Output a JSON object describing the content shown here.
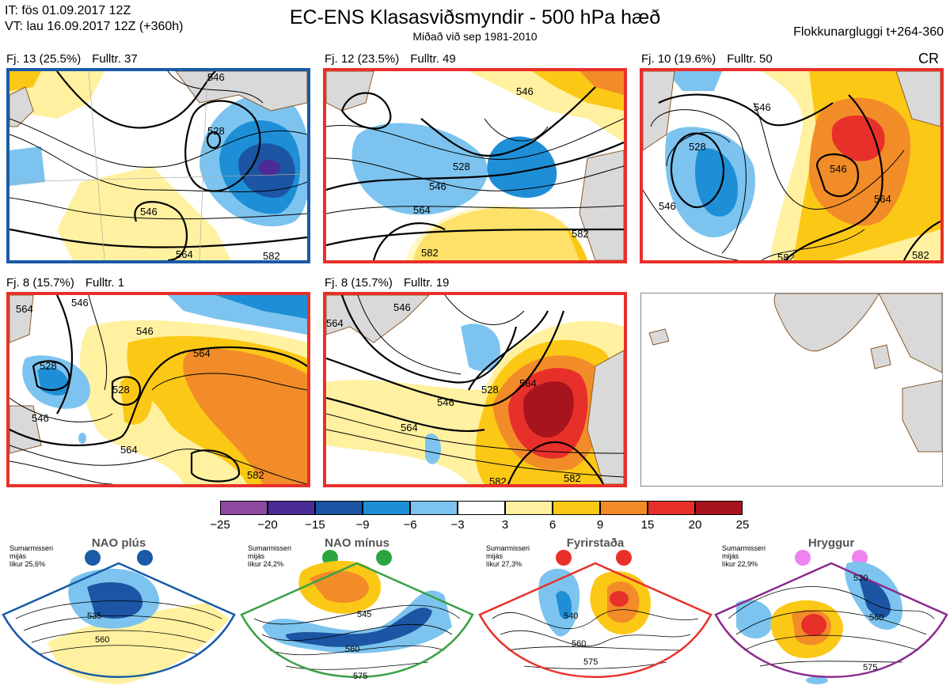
{
  "header": {
    "init_time": "IT: fös 01.09.2017 12Z",
    "valid_time": "VT: lau 16.09.2017 12Z  (+360h)",
    "title": "EC-ENS Klasasviðsmyndir - 500 hPa hæð",
    "subtitle": "Miðað við sep 1981-2010",
    "window": "Flokkunargluggi t+264-360",
    "cr": "CR"
  },
  "colors": {
    "blue_border": "#1a5aa6",
    "red_border": "#e8302a",
    "green_border": "#3ba046",
    "purple_border": "#8a2b8e",
    "land": "#d9d9d9",
    "coast": "#8a5a2b"
  },
  "panels": [
    {
      "label": "Fj. 13 (25.5%)",
      "member": "Fulltr. 37",
      "border": "blue",
      "contours": [
        "546",
        "528",
        "546",
        "564",
        "582"
      ]
    },
    {
      "label": "Fj. 12 (23.5%)",
      "member": "Fulltr. 49",
      "border": "red",
      "contours": [
        "546",
        "528",
        "546",
        "564",
        "582",
        "582"
      ]
    },
    {
      "label": "Fj. 10 (19.6%)",
      "member": "Fulltr. 50",
      "border": "red",
      "contours": [
        "546",
        "528",
        "546",
        "546",
        "564",
        "582",
        "582"
      ]
    },
    {
      "label": "Fj. 8 (15.7%)",
      "member": "Fulltr. 1",
      "border": "red",
      "contours": [
        "564",
        "546",
        "528",
        "546",
        "528",
        "546",
        "564",
        "564",
        "582"
      ]
    },
    {
      "label": "Fj. 8 (15.7%)",
      "member": "Fulltr. 19",
      "border": "red",
      "contours": [
        "564",
        "546",
        "528",
        "546",
        "564",
        "564",
        "582",
        "582"
      ]
    }
  ],
  "colorbar": {
    "ticks": [
      "−25",
      "−20",
      "−15",
      "−9",
      "−6",
      "−3",
      "3",
      "6",
      "9",
      "15",
      "20",
      "25"
    ],
    "colors": [
      "#8e4aa0",
      "#4b2b96",
      "#1b55a3",
      "#1e8fd6",
      "#7cc4ef",
      "#ffffff",
      "#fff1a0",
      "#fcc816",
      "#f28c28",
      "#e8302a",
      "#a8141c"
    ]
  },
  "regimes": [
    {
      "name": "NAO plús",
      "meta": [
        "Sumarmisseri",
        "mijás",
        "líkur 25,6%"
      ],
      "dot_color": "#1a5aa6",
      "border": "blue",
      "contours": [
        "535",
        "560"
      ]
    },
    {
      "name": "NAO mínus",
      "meta": [
        "Sumarmisseri",
        "mijás",
        "líkur 24,2%"
      ],
      "dot_color": "#2aa640",
      "border": "green",
      "contours": [
        "545",
        "560",
        "575"
      ]
    },
    {
      "name": "Fyrirstaða",
      "meta": [
        "Sumarmisseri",
        "mijás",
        "líkur 27,3%"
      ],
      "dot_color": "#e8302a",
      "border": "red",
      "contours": [
        "540",
        "560",
        "575"
      ]
    },
    {
      "name": "Hryggur",
      "meta": [
        "Sumarmisseri",
        "mijás",
        "líkur 22,9%"
      ],
      "dot_color": "#ee82ee",
      "border": "purple",
      "contours": [
        "530",
        "550",
        "575"
      ]
    }
  ]
}
